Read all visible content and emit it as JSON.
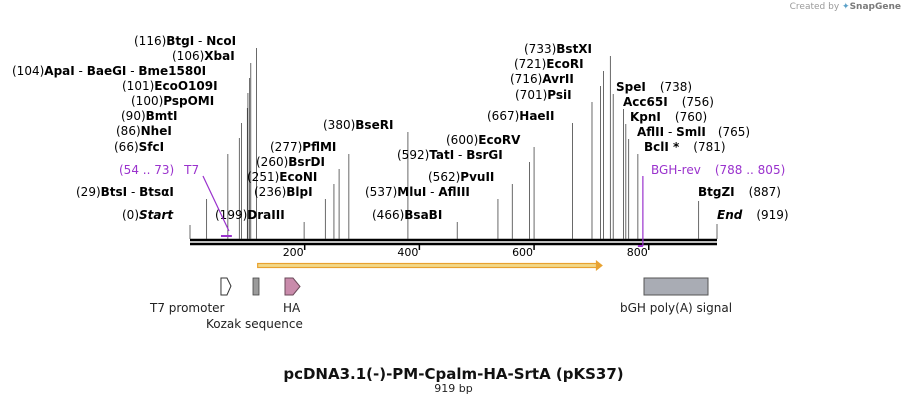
{
  "watermark": {
    "prefix": "Created by",
    "brand": "SnapGene"
  },
  "plasmid": {
    "name": "pcDNA3.1(-)-PM-Cpalm-HA-SrtA (pKS37)",
    "size_label": "919 bp"
  },
  "sequence": {
    "length": 919,
    "axis_ticks": [
      200,
      400,
      600,
      800
    ]
  },
  "enzymes": [
    {
      "pos": 0,
      "names": [
        "Start"
      ],
      "pos_label": "(0)",
      "italic": true
    },
    {
      "pos": 29,
      "names": [
        "BtsI",
        "BtsαI"
      ],
      "pos_label": "(29)"
    },
    {
      "pos": 66,
      "names": [
        "SfcI"
      ],
      "pos_label": "(66)"
    },
    {
      "pos": 86,
      "names": [
        "NheI"
      ],
      "pos_label": "(86)"
    },
    {
      "pos": 90,
      "names": [
        "BmtI"
      ],
      "pos_label": "(90)"
    },
    {
      "pos": 100,
      "names": [
        "PspOMI"
      ],
      "pos_label": "(100)"
    },
    {
      "pos": 101,
      "names": [
        "EcoO109I"
      ],
      "pos_label": "(101)"
    },
    {
      "pos": 104,
      "names": [
        "ApaI",
        "BaeGI",
        "Bme1580I"
      ],
      "pos_label": "(104)"
    },
    {
      "pos": 106,
      "names": [
        "XbaI"
      ],
      "pos_label": "(106)"
    },
    {
      "pos": 116,
      "names": [
        "BtgI",
        "NcoI"
      ],
      "pos_label": "(116)"
    },
    {
      "pos": 199,
      "names": [
        "DraIII"
      ],
      "pos_label": "(199)"
    },
    {
      "pos": 236,
      "names": [
        "BlpI"
      ],
      "pos_label": "(236)"
    },
    {
      "pos": 251,
      "names": [
        "EcoNI"
      ],
      "pos_label": "(251)"
    },
    {
      "pos": 260,
      "names": [
        "BsrDI"
      ],
      "pos_label": "(260)"
    },
    {
      "pos": 277,
      "names": [
        "PflMI"
      ],
      "pos_label": "(277)"
    },
    {
      "pos": 380,
      "names": [
        "BseRI"
      ],
      "pos_label": "(380)"
    },
    {
      "pos": 466,
      "names": [
        "BsaBI"
      ],
      "pos_label": "(466)"
    },
    {
      "pos": 537,
      "names": [
        "MluI",
        "AflIII"
      ],
      "pos_label": "(537)"
    },
    {
      "pos": 562,
      "names": [
        "PvuII"
      ],
      "pos_label": "(562)"
    },
    {
      "pos": 592,
      "names": [
        "TatI",
        "BsrGI"
      ],
      "pos_label": "(592)"
    },
    {
      "pos": 600,
      "names": [
        "EcoRV"
      ],
      "pos_label": "(600)"
    },
    {
      "pos": 667,
      "names": [
        "HaeII"
      ],
      "pos_label": "(667)"
    },
    {
      "pos": 701,
      "names": [
        "PsiI"
      ],
      "pos_label": "(701)"
    },
    {
      "pos": 716,
      "names": [
        "AvrII"
      ],
      "pos_label": "(716)"
    },
    {
      "pos": 721,
      "names": [
        "EcoRI"
      ],
      "pos_label": "(721)"
    },
    {
      "pos": 733,
      "names": [
        "BstXI"
      ],
      "pos_label": "(733)"
    },
    {
      "pos": 738,
      "names": [
        "SpeI"
      ],
      "pos_label": "(738)"
    },
    {
      "pos": 756,
      "names": [
        "Acc65I"
      ],
      "pos_label": "(756)"
    },
    {
      "pos": 760,
      "names": [
        "KpnI"
      ],
      "pos_label": "(760)"
    },
    {
      "pos": 765,
      "names": [
        "AflII",
        "SmlI"
      ],
      "pos_label": "(765)"
    },
    {
      "pos": 781,
      "names": [
        "BclI *"
      ],
      "pos_label": "(781)"
    },
    {
      "pos": 887,
      "names": [
        "BtgZI"
      ],
      "pos_label": "(887)"
    },
    {
      "pos": 919,
      "names": [
        "End"
      ],
      "pos_label": "(919)",
      "italic": true
    }
  ],
  "primers": [
    {
      "name": "T7",
      "range_label": "(54 .. 73)",
      "start": 54,
      "end": 73,
      "strand": "forward"
    },
    {
      "name": "BGH-rev",
      "range_label": "(788 .. 805)",
      "start": 788,
      "end": 805,
      "strand": "reverse"
    }
  ],
  "orf": {
    "start": 118,
    "end": 720,
    "direction": "forward"
  },
  "features": [
    {
      "name": "T7 promoter",
      "start": 54,
      "end": 73,
      "shape": "arrow"
    },
    {
      "name": "Kozak sequence",
      "start": 110,
      "end": 119,
      "shape": "box"
    },
    {
      "name": "HA",
      "start": 170,
      "end": 196,
      "shape": "arrow"
    },
    {
      "name": "bGH poly(A) signal",
      "start": 788,
      "end": 900,
      "shape": "box"
    }
  ],
  "colors": {
    "primer": "#9a32cd",
    "orf_fill": "#f2d98a",
    "orf_stroke": "#e8a230",
    "ha_fill": "#c98bab",
    "kozak_fill": "#9b9b9b",
    "polya_fill": "#a9acb4",
    "text": "#000000",
    "gray_text": "#222222"
  }
}
